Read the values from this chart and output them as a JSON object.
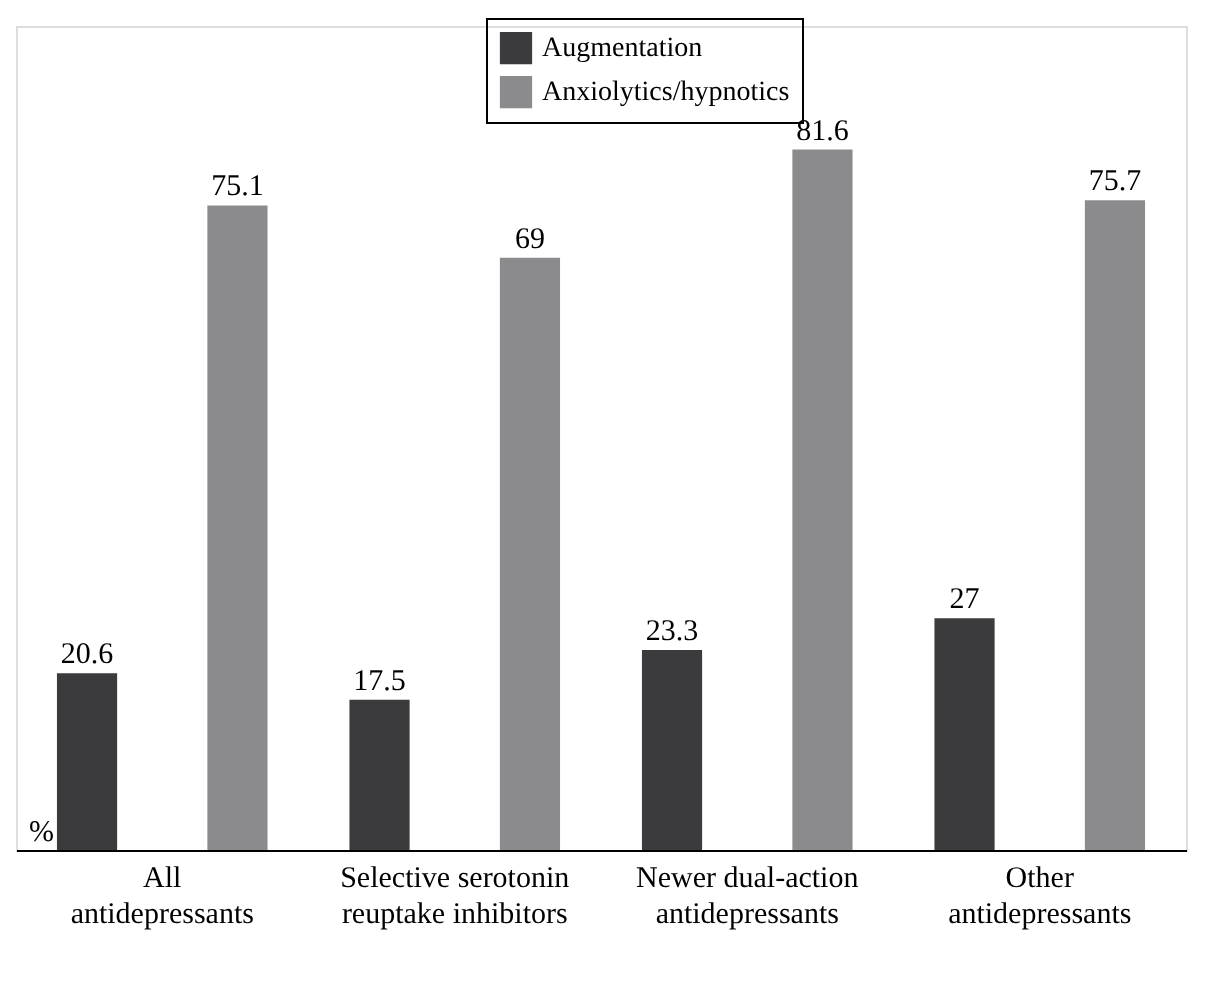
{
  "chart_data": {
    "type": "bar",
    "categories": [
      "All antidepressants",
      "Selective serotonin reuptake inhibitors",
      "Newer dual-action antidepressants",
      "Other antidepressants"
    ],
    "series": [
      {
        "name": "Augmentation",
        "color": "#3b3b3d",
        "values": [
          20.6,
          17.5,
          23.3,
          27
        ]
      },
      {
        "name": "Anxiolytics/hypnotics",
        "color": "#8b8b8e",
        "values": [
          75.1,
          69,
          81.6,
          75.7
        ]
      }
    ],
    "ylabel": "%",
    "ylim": [
      0,
      96
    ],
    "data_labels": true,
    "legend": "top",
    "grid": false,
    "tick_labels": "x"
  }
}
